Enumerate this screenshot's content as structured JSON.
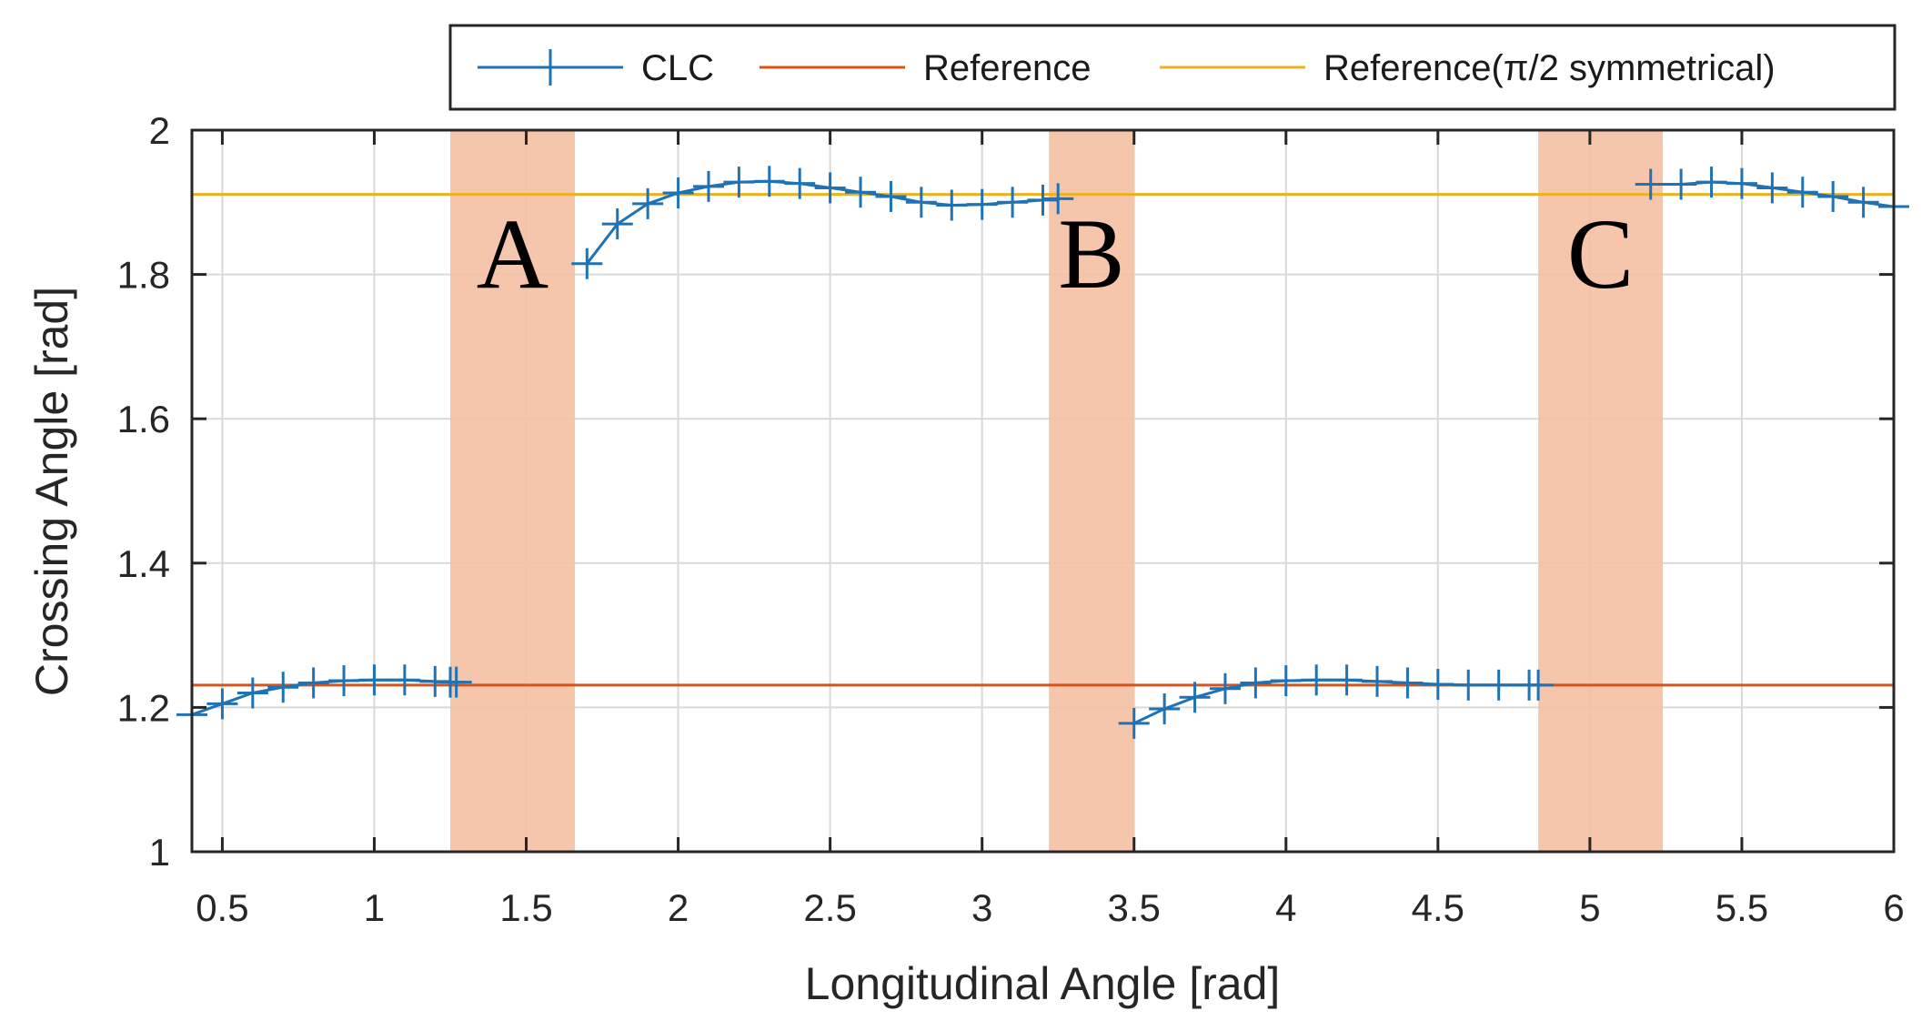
{
  "chart_data": {
    "type": "line",
    "xlabel": "Longitudinal Angle [rad]",
    "ylabel": "Crossing Angle [rad]",
    "xlim": [
      0.4,
      6.0
    ],
    "ylim": [
      1.0,
      2.0
    ],
    "x_ticks": [
      0.5,
      1,
      1.5,
      2,
      2.5,
      3,
      3.5,
      4,
      4.5,
      5,
      5.5,
      6
    ],
    "x_tick_labels": [
      "0.5",
      "1",
      "1.5",
      "2",
      "2.5",
      "3",
      "3.5",
      "4",
      "4.5",
      "5",
      "5.5",
      "6"
    ],
    "y_ticks": [
      1,
      1.2,
      1.4,
      1.6,
      1.8,
      2
    ],
    "y_tick_labels": [
      "1",
      "1.2",
      "1.4",
      "1.6",
      "1.8",
      "2"
    ],
    "grid": true,
    "legend_position": "top",
    "series": [
      {
        "name": "CLC",
        "color": "#1f73b4",
        "marker": "plus",
        "segments": [
          [
            [
              0.4,
              1.19
            ],
            [
              0.5,
              1.205
            ],
            [
              0.6,
              1.22
            ],
            [
              0.7,
              1.228
            ],
            [
              0.8,
              1.234
            ],
            [
              0.9,
              1.237
            ],
            [
              1.0,
              1.238
            ],
            [
              1.1,
              1.238
            ],
            [
              1.2,
              1.236
            ],
            [
              1.25,
              1.235
            ],
            [
              1.27,
              1.235
            ]
          ],
          [
            [
              1.7,
              1.815
            ],
            [
              1.8,
              1.87
            ],
            [
              1.9,
              1.898
            ],
            [
              2.0,
              1.913
            ],
            [
              2.1,
              1.922
            ],
            [
              2.2,
              1.928
            ],
            [
              2.3,
              1.929
            ],
            [
              2.4,
              1.926
            ],
            [
              2.5,
              1.92
            ],
            [
              2.6,
              1.914
            ],
            [
              2.7,
              1.908
            ],
            [
              2.8,
              1.9
            ],
            [
              2.9,
              1.896
            ],
            [
              3.0,
              1.897
            ],
            [
              3.1,
              1.9
            ],
            [
              3.2,
              1.903
            ],
            [
              3.25,
              1.905
            ]
          ],
          [
            [
              3.5,
              1.178
            ],
            [
              3.6,
              1.198
            ],
            [
              3.7,
              1.214
            ],
            [
              3.8,
              1.226
            ],
            [
              3.9,
              1.234
            ],
            [
              4.0,
              1.237
            ],
            [
              4.1,
              1.238
            ],
            [
              4.2,
              1.238
            ],
            [
              4.3,
              1.236
            ],
            [
              4.4,
              1.234
            ],
            [
              4.5,
              1.232
            ],
            [
              4.6,
              1.231
            ],
            [
              4.7,
              1.231
            ],
            [
              4.8,
              1.231
            ],
            [
              4.83,
              1.231
            ]
          ],
          [
            [
              5.2,
              1.925
            ],
            [
              5.3,
              1.925
            ],
            [
              5.4,
              1.928
            ],
            [
              5.5,
              1.926
            ],
            [
              5.6,
              1.92
            ],
            [
              5.7,
              1.914
            ],
            [
              5.8,
              1.908
            ],
            [
              5.9,
              1.9
            ],
            [
              6.0,
              1.894
            ]
          ]
        ]
      },
      {
        "name": "Reference",
        "color": "#d95319",
        "x": [
          0.4,
          6.0
        ],
        "y": [
          1.231,
          1.231
        ]
      },
      {
        "name": "Reference(π/2 symmetrical)",
        "color": "#edb120",
        "x": [
          0.4,
          6.0
        ],
        "y": [
          1.911,
          1.911
        ]
      }
    ],
    "shaded_regions": [
      {
        "label": "A",
        "x0": 1.25,
        "x1": 1.66
      },
      {
        "label": "B",
        "x0": 3.22,
        "x1": 3.5
      },
      {
        "label": "C",
        "x0": 4.83,
        "x1": 5.24
      }
    ],
    "region_color": "#f4c0a2"
  }
}
